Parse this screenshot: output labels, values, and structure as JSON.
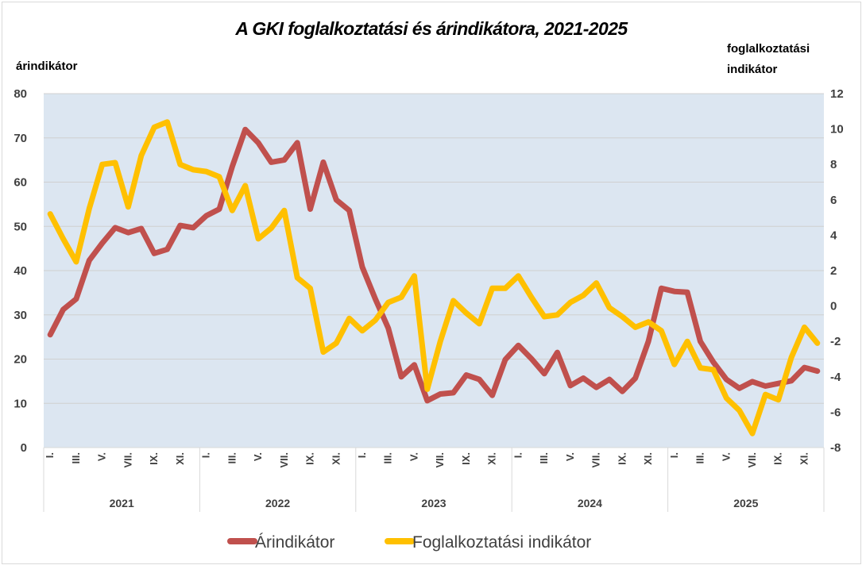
{
  "chart_data": {
    "type": "line",
    "title": "A GKI foglalkoztatási és árindikátora, 2021-2025",
    "ylabel_left": "árindikátor",
    "ylabel_right": [
      "foglalkoztatási",
      "indikátor"
    ],
    "ylim_left": [
      0,
      80
    ],
    "ylim_right": [
      -8,
      12
    ],
    "yticks_left": [
      0,
      10,
      20,
      30,
      40,
      50,
      60,
      70,
      80
    ],
    "yticks_right": [
      -8,
      -6,
      -4,
      -2,
      0,
      2,
      4,
      6,
      8,
      10,
      12
    ],
    "grid": true,
    "years": [
      "2021",
      "2022",
      "2023",
      "2024",
      "2025"
    ],
    "month_labels": [
      "I.",
      "III.",
      "V.",
      "VII.",
      "IX.",
      "XI."
    ],
    "legend_position": "bottom",
    "colors": {
      "plot_bg": "#dce6f1",
      "grid": "#d0d0d0",
      "price": "#c0504d",
      "employment": "#ffc000"
    },
    "series": [
      {
        "name": "Árindikátor",
        "axis": "left",
        "color": "#c0504d",
        "values": [
          25.5,
          31.2,
          33.6,
          42.3,
          46.2,
          49.7,
          48.6,
          49.5,
          43.9,
          44.8,
          50.2,
          49.7,
          52.4,
          53.9,
          63.5,
          71.9,
          68.9,
          64.5,
          65.0,
          68.9,
          53.9,
          64.5,
          56.0,
          53.6,
          40.8,
          33.6,
          27.0,
          16.0,
          18.7,
          10.6,
          12.1,
          12.4,
          16.4,
          15.4,
          11.8,
          19.9,
          23.1,
          20.1,
          16.7,
          21.5,
          14.0,
          15.7,
          13.6,
          15.4,
          12.7,
          15.7,
          24.0,
          36.0,
          35.3,
          35.1,
          24.0,
          19.3,
          15.4,
          13.4,
          14.9,
          13.9,
          14.5,
          15.1,
          18.1,
          17.3
        ]
      },
      {
        "name": "Foglalkoztatási indikátor",
        "axis": "right",
        "color": "#ffc000",
        "values": [
          5.2,
          3.8,
          2.5,
          5.5,
          8.0,
          8.1,
          5.6,
          8.5,
          10.1,
          10.4,
          8.0,
          7.7,
          7.6,
          7.3,
          5.4,
          6.8,
          3.8,
          4.4,
          5.4,
          1.6,
          1.0,
          -2.6,
          -2.1,
          -0.7,
          -1.4,
          -0.8,
          0.2,
          0.5,
          1.7,
          -4.7,
          -2.0,
          0.3,
          -0.4,
          -1.0,
          1.0,
          1.0,
          1.7,
          0.5,
          -0.6,
          -0.5,
          0.2,
          0.6,
          1.3,
          -0.1,
          -0.6,
          -1.2,
          -0.9,
          -1.4,
          -3.3,
          -2.0,
          -3.5,
          -3.6,
          -5.2,
          -5.9,
          -7.2,
          -5.0,
          -5.3,
          -2.9,
          -1.2,
          -2.1
        ]
      }
    ]
  }
}
